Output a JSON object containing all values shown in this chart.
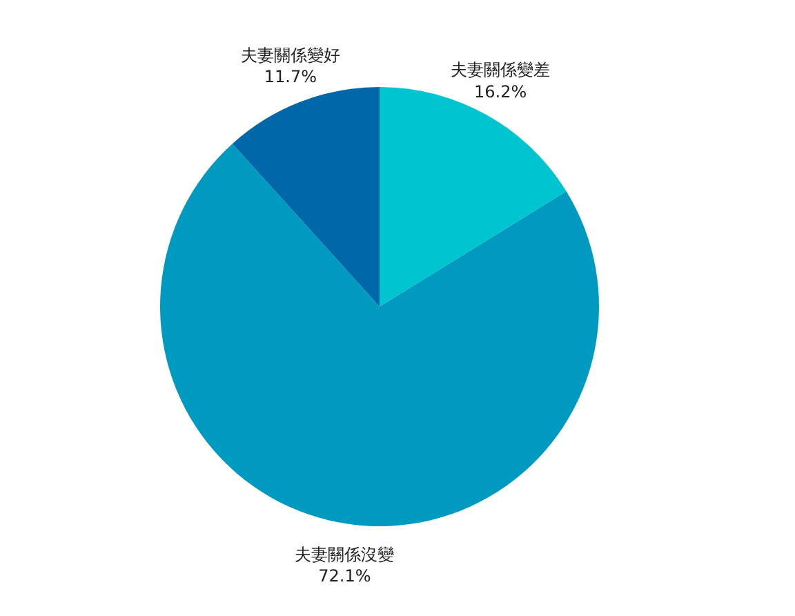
{
  "chart_data": {
    "type": "pie",
    "categories": [
      "夫妻關係變差",
      "夫妻關係沒變",
      "夫妻關係變好"
    ],
    "values": [
      16.2,
      72.1,
      11.7
    ],
    "value_labels": [
      "16.2%",
      "72.1%",
      "11.7%"
    ],
    "colors": [
      "#00c5d0",
      "#0099c0",
      "#0068a8"
    ]
  }
}
